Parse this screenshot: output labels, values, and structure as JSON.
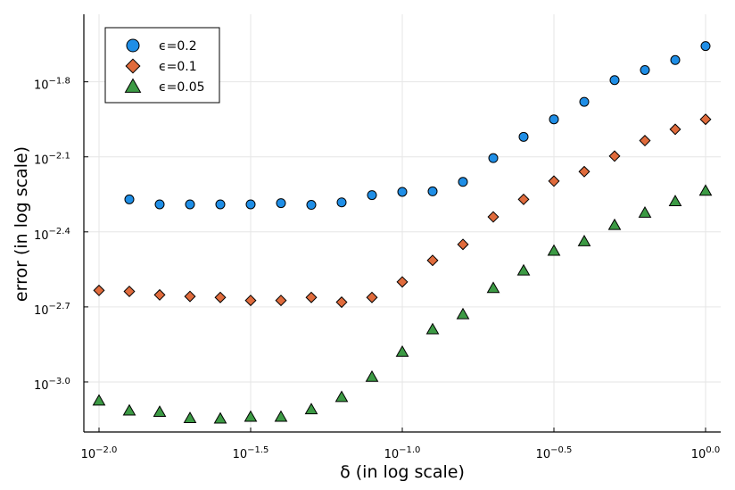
{
  "chart_data": {
    "type": "scatter",
    "title": "",
    "xlabel": "δ (in log scale)",
    "ylabel": "error (in log scale)",
    "x_scale": "log10",
    "y_scale": "log10",
    "xlim": [
      -2.05,
      0.05
    ],
    "ylim": [
      -3.2,
      -1.53
    ],
    "xticks": [
      {
        "exp": -2.0,
        "base": "10",
        "sup": "−2.0"
      },
      {
        "exp": -1.5,
        "base": "10",
        "sup": "−1.5"
      },
      {
        "exp": -1.0,
        "base": "10",
        "sup": "−1.0"
      },
      {
        "exp": -0.5,
        "base": "10",
        "sup": "−0.5"
      },
      {
        "exp": 0.0,
        "base": "10",
        "sup": "0.0"
      }
    ],
    "yticks": [
      {
        "exp": -1.8,
        "base": "10",
        "sup": "−1.8"
      },
      {
        "exp": -2.1,
        "base": "10",
        "sup": "−2.1"
      },
      {
        "exp": -2.4,
        "base": "10",
        "sup": "−2.4"
      },
      {
        "exp": -2.7,
        "base": "10",
        "sup": "−2.7"
      },
      {
        "exp": -3.0,
        "base": "10",
        "sup": "−3.0"
      }
    ],
    "grid": true,
    "legend_position": "top-left",
    "series": [
      {
        "name": "ϵ=0.2",
        "marker": "circle",
        "color": "#1f8ee6",
        "x": [
          -1.9,
          -1.8,
          -1.7,
          -1.6,
          -1.5,
          -1.4,
          -1.3,
          -1.2,
          -1.1,
          -1.0,
          -0.9,
          -0.8,
          -0.7,
          -0.6,
          -0.5,
          -0.4,
          -0.3,
          -0.2,
          -0.1,
          0.0
        ],
        "y": [
          -2.27,
          -2.29,
          -2.29,
          -2.29,
          -2.29,
          -2.285,
          -2.292,
          -2.282,
          -2.253,
          -2.24,
          -2.238,
          -2.2,
          -2.105,
          -2.02,
          -1.95,
          -1.88,
          -1.793,
          -1.753,
          -1.713,
          -1.657
        ]
      },
      {
        "name": "ϵ=0.1",
        "marker": "diamond",
        "color": "#e06b3c",
        "x": [
          -2.0,
          -1.9,
          -1.8,
          -1.7,
          -1.6,
          -1.5,
          -1.4,
          -1.3,
          -1.2,
          -1.1,
          -1.0,
          -0.9,
          -0.8,
          -0.7,
          -0.6,
          -0.5,
          -0.4,
          -0.3,
          -0.2,
          -0.1,
          0.0
        ],
        "y": [
          -2.634,
          -2.638,
          -2.652,
          -2.658,
          -2.662,
          -2.674,
          -2.674,
          -2.662,
          -2.681,
          -2.662,
          -2.6,
          -2.514,
          -2.45,
          -2.34,
          -2.27,
          -2.197,
          -2.159,
          -2.097,
          -2.035,
          -1.99,
          -1.95
        ]
      },
      {
        "name": "ϵ=0.05",
        "marker": "triangle",
        "color": "#3c9a44",
        "x": [
          -2.0,
          -1.9,
          -1.8,
          -1.7,
          -1.6,
          -1.5,
          -1.4,
          -1.3,
          -1.2,
          -1.1,
          -1.0,
          -0.9,
          -0.8,
          -0.7,
          -0.6,
          -0.5,
          -0.4,
          -0.3,
          -0.2,
          -0.1,
          0.0
        ],
        "y": [
          -3.075,
          -3.115,
          -3.12,
          -3.145,
          -3.147,
          -3.14,
          -3.14,
          -3.11,
          -3.061,
          -2.98,
          -2.88,
          -2.79,
          -2.73,
          -2.625,
          -2.555,
          -2.476,
          -2.438,
          -2.373,
          -2.324,
          -2.278,
          -2.236
        ]
      }
    ]
  }
}
